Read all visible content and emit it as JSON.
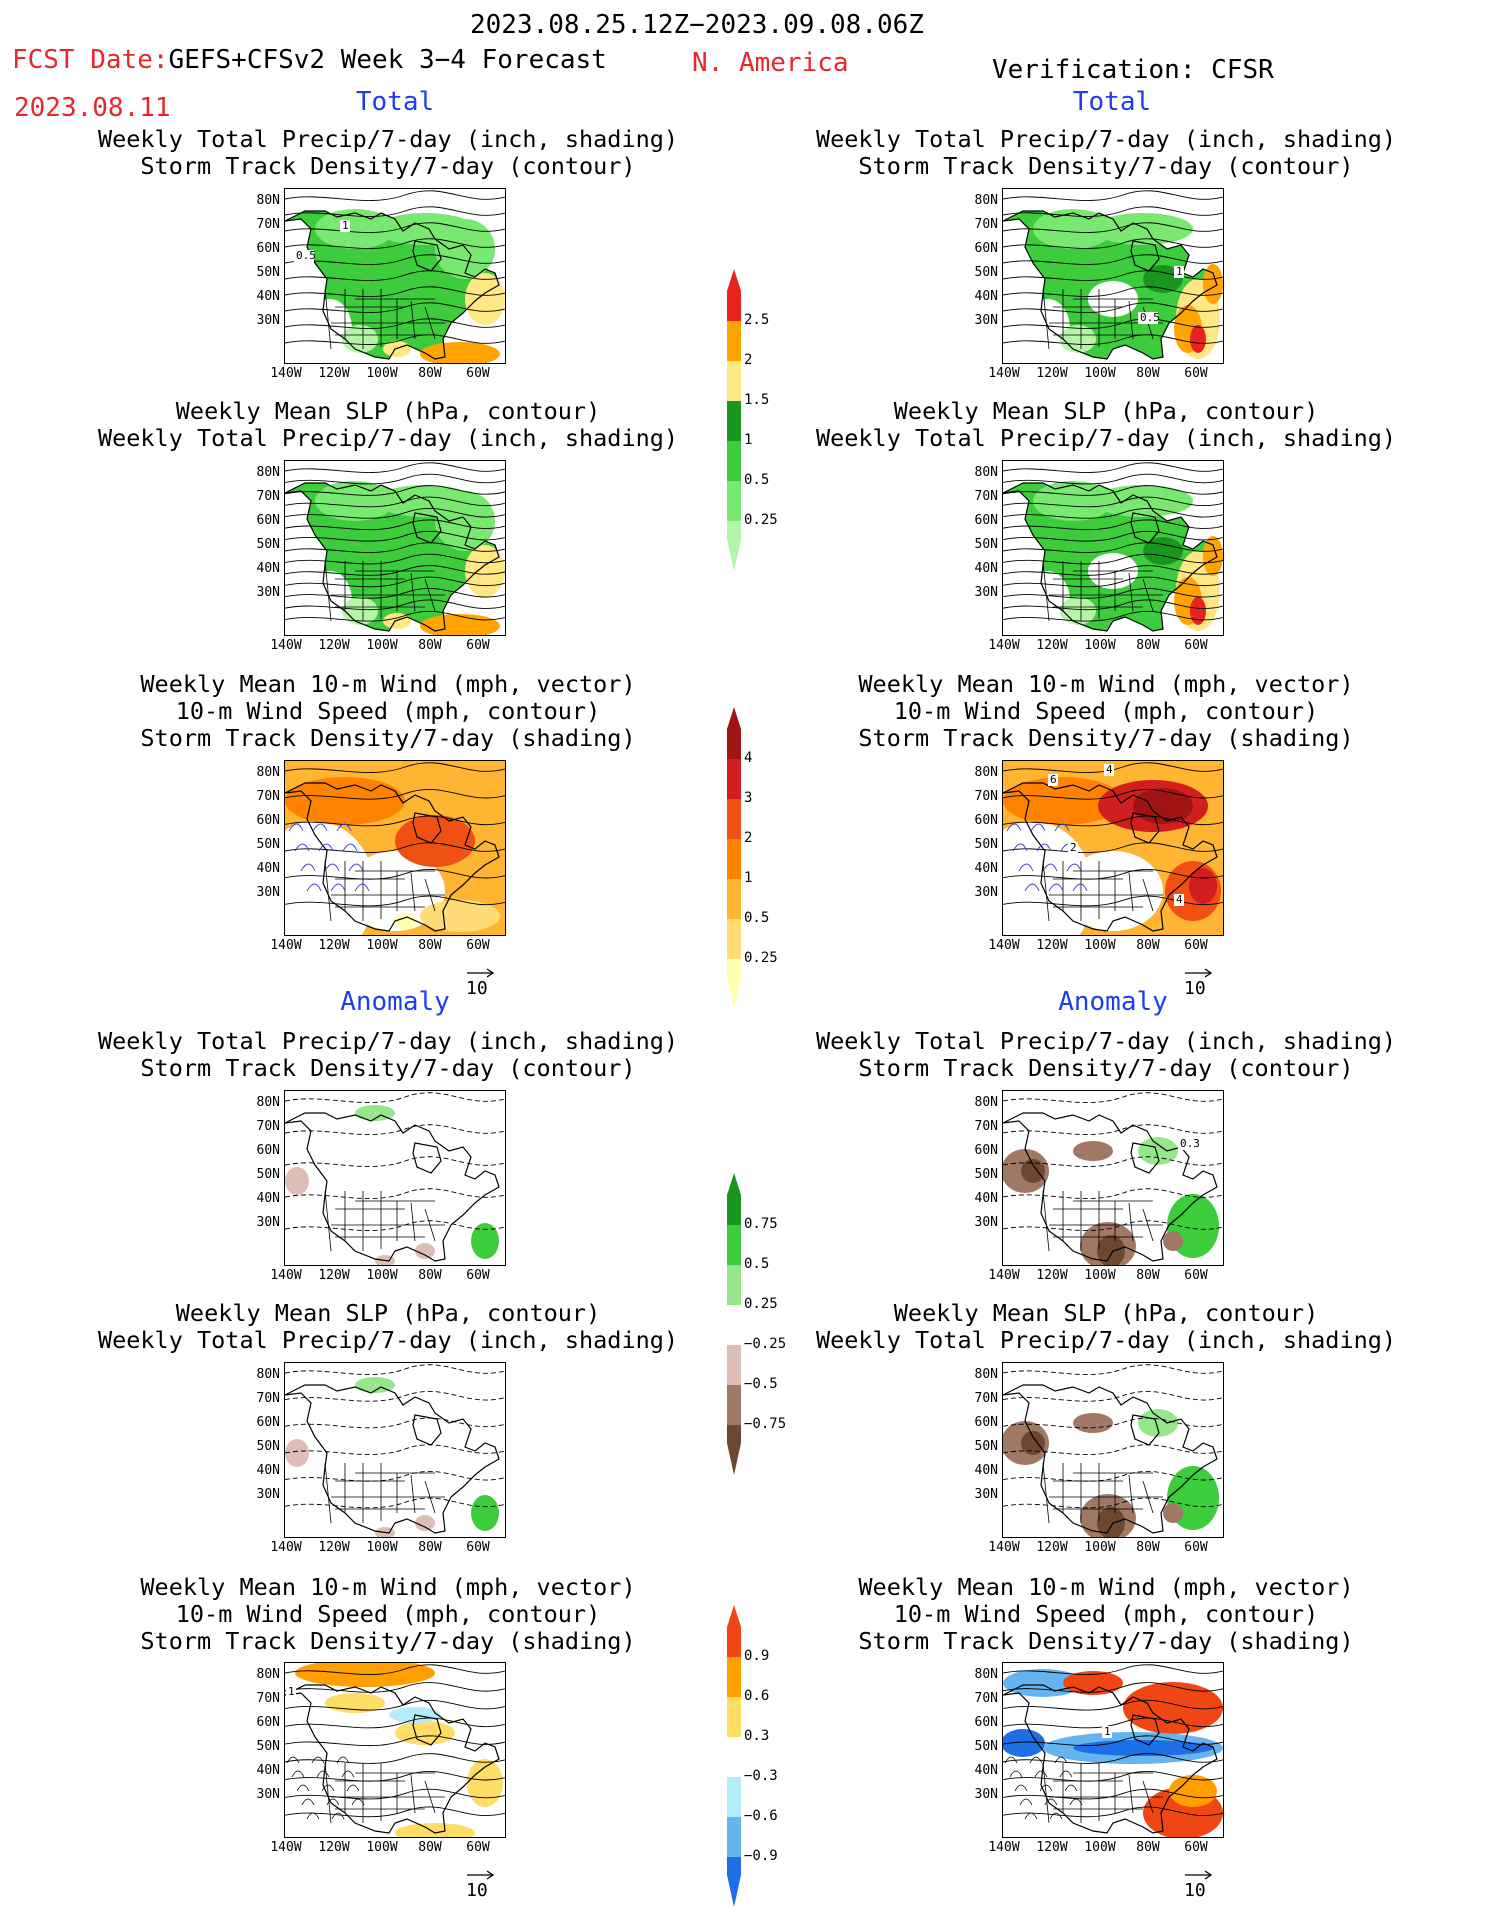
{
  "header": {
    "period": "2023.08.25.12Z−2023.09.08.06Z",
    "fcst_prefix": "FCST Date:",
    "model": "GEFS+CFSv2 Week 3−4 Forecast",
    "fcst_date": "2023.08.11",
    "region": "N. America",
    "verification": "Verification: CFSR"
  },
  "sections": {
    "total": "Total",
    "anomaly": "Anomaly"
  },
  "panel_titles": {
    "precip_track": "Weekly Total Precip/7-day (inch, shading)\nStorm Track Density/7-day (contour)",
    "slp_precip": "Weekly Mean SLP (hPa, contour)\nWeekly Total Precip/7-day (inch, shading)",
    "wind_track": "Weekly Mean 10-m Wind (mph, vector)\n10-m Wind Speed (mph, contour)\nStorm Track Density/7-day (shading)"
  },
  "axes": {
    "lat_labels": [
      "80N",
      "70N",
      "60N",
      "50N",
      "40N",
      "30N"
    ],
    "lon_labels": [
      "140W",
      "120W",
      "100W",
      "80W",
      "60W"
    ]
  },
  "vector_reference": "10",
  "colorbars": {
    "precip_total": {
      "levels": [
        "0.25",
        "0.5",
        "1",
        "1.5",
        "2",
        "2.5"
      ],
      "colors": [
        "#b4f5a8",
        "#78e870",
        "#3ccc3c",
        "#1a961e",
        "#ffe884",
        "#ffa400",
        "#e8221e"
      ]
    },
    "track_total": {
      "levels": [
        "0.25",
        "0.5",
        "1",
        "2",
        "3",
        "4"
      ],
      "colors": [
        "#ffffb4",
        "#ffdc78",
        "#ffb432",
        "#ff8200",
        "#f05014",
        "#d21e1e",
        "#a01414"
      ]
    },
    "precip_anom": {
      "levels": [
        "0.75",
        "0.5",
        "0.25",
        "−0.25",
        "−0.5",
        "−0.75"
      ],
      "colors": [
        "#1a961e",
        "#3ccc3c",
        "#96e68c",
        "#ffffff",
        "#dcbeb4",
        "#a07864",
        "#6e4632"
      ]
    },
    "wind_anom": {
      "levels": [
        "0.9",
        "0.6",
        "0.3",
        "−0.3",
        "−0.6",
        "−0.9"
      ],
      "colors": [
        "#f04614",
        "#ffa000",
        "#ffdc64",
        "#ffffff",
        "#b4ebfa",
        "#64b4f0",
        "#1e6ee6"
      ]
    }
  },
  "contour_labels": {
    "fcst_precip_track": [
      "1",
      "0.5"
    ],
    "obs_precip_track": [
      "1",
      "0.5"
    ],
    "obs_wind_track": [
      "6",
      "4",
      "2",
      "4"
    ],
    "fcst_wind_anom": [
      "1"
    ],
    "obs_wind_anom": [
      "1"
    ],
    "obs_precip_anom": [
      "0.3"
    ]
  },
  "palette": {
    "header_red": "#e8262b",
    "section_blue": "#1f3cf0"
  }
}
